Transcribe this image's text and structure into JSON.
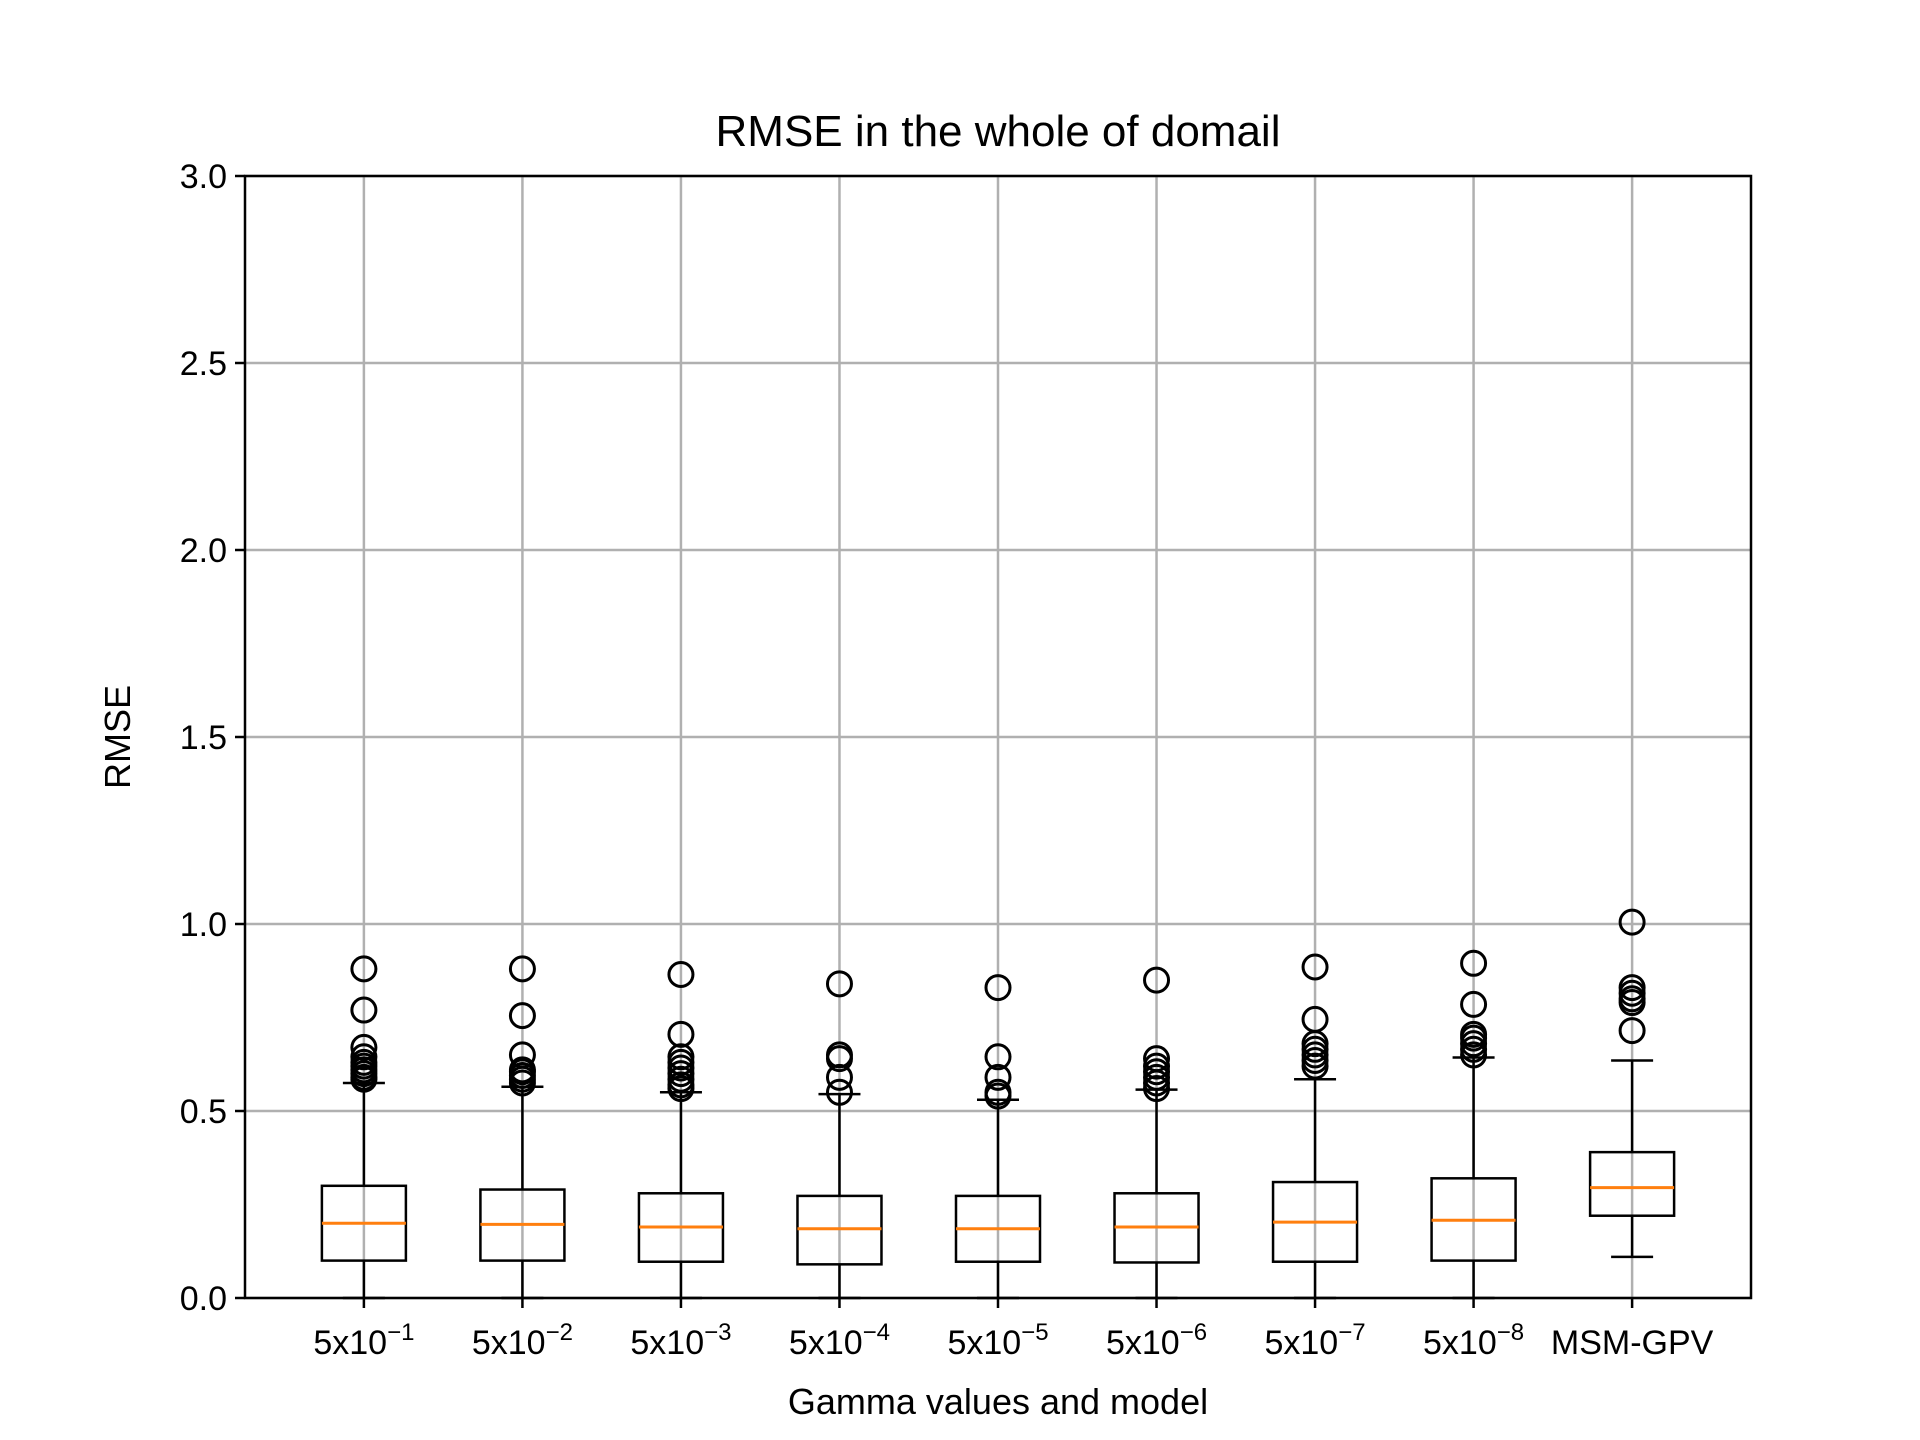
{
  "chart_data": {
    "type": "boxplot",
    "title": "RMSE in the whole of domail",
    "xlabel": "Gamma values and model",
    "ylabel": "RMSE",
    "ylim": [
      0.0,
      3.0
    ],
    "yticks": [
      "0.0",
      "0.5",
      "1.0",
      "1.5",
      "2.0",
      "2.5",
      "3.0"
    ],
    "grid": true,
    "median_color": "#ff7f0e",
    "categories": [
      {
        "base": "5x10",
        "exp": "−1"
      },
      {
        "base": "5x10",
        "exp": "−2"
      },
      {
        "base": "5x10",
        "exp": "−3"
      },
      {
        "base": "5x10",
        "exp": "−4"
      },
      {
        "base": "5x10",
        "exp": "−5"
      },
      {
        "base": "5x10",
        "exp": "−6"
      },
      {
        "base": "5x10",
        "exp": "−7"
      },
      {
        "base": "5x10",
        "exp": "−8"
      },
      {
        "base": "MSM-GPV",
        "exp": ""
      }
    ],
    "boxes": [
      {
        "whislo": 0.0,
        "q1": 0.1,
        "med": 0.2,
        "q3": 0.3,
        "whishi": 0.575,
        "fliers": [
          0.585,
          0.59,
          0.6,
          0.61,
          0.62,
          0.63,
          0.645,
          0.67,
          0.77,
          0.88
        ]
      },
      {
        "whislo": 0.0,
        "q1": 0.1,
        "med": 0.197,
        "q3": 0.29,
        "whishi": 0.565,
        "fliers": [
          0.575,
          0.585,
          0.595,
          0.605,
          0.61,
          0.65,
          0.755,
          0.88
        ]
      },
      {
        "whislo": 0.0,
        "q1": 0.097,
        "med": 0.19,
        "q3": 0.28,
        "whishi": 0.55,
        "fliers": [
          0.56,
          0.57,
          0.585,
          0.6,
          0.615,
          0.63,
          0.645,
          0.705,
          0.865
        ]
      },
      {
        "whislo": 0.0,
        "q1": 0.09,
        "med": 0.185,
        "q3": 0.273,
        "whishi": 0.545,
        "fliers": [
          0.55,
          0.59,
          0.64,
          0.65,
          0.84
        ]
      },
      {
        "whislo": 0.0,
        "q1": 0.097,
        "med": 0.185,
        "q3": 0.273,
        "whishi": 0.53,
        "fliers": [
          0.54,
          0.55,
          0.59,
          0.645,
          0.83
        ]
      },
      {
        "whislo": 0.0,
        "q1": 0.095,
        "med": 0.19,
        "q3": 0.28,
        "whishi": 0.557,
        "fliers": [
          0.56,
          0.575,
          0.59,
          0.605,
          0.62,
          0.64,
          0.85
        ]
      },
      {
        "whislo": 0.0,
        "q1": 0.097,
        "med": 0.203,
        "q3": 0.31,
        "whishi": 0.585,
        "fliers": [
          0.62,
          0.635,
          0.65,
          0.665,
          0.68,
          0.745,
          0.885
        ]
      },
      {
        "whislo": 0.0,
        "q1": 0.1,
        "med": 0.208,
        "q3": 0.32,
        "whishi": 0.643,
        "fliers": [
          0.65,
          0.665,
          0.68,
          0.695,
          0.705,
          0.785,
          0.895
        ]
      },
      {
        "whislo": 0.11,
        "q1": 0.22,
        "med": 0.295,
        "q3": 0.39,
        "whishi": 0.635,
        "fliers": [
          0.715,
          0.79,
          0.8,
          0.815,
          0.83,
          1.005
        ]
      }
    ]
  }
}
